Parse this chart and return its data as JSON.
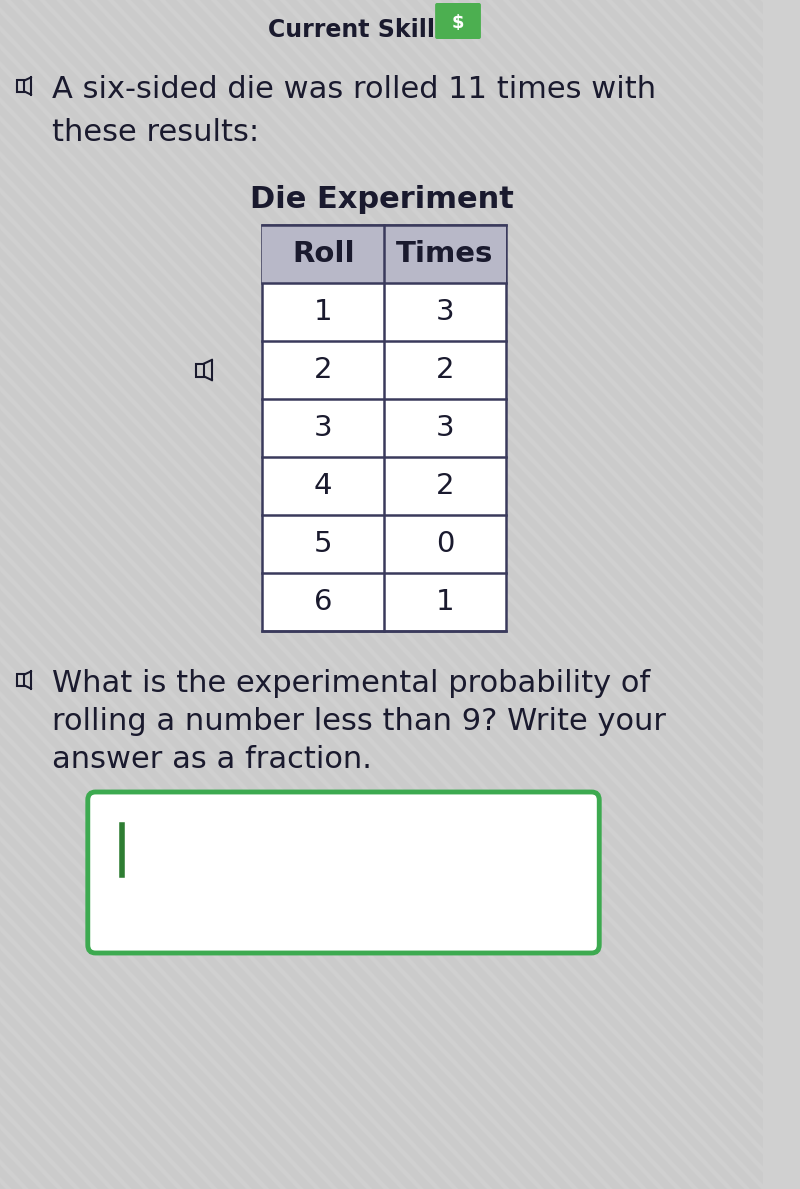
{
  "bg_color": "#d0d0d0",
  "header_text": "Current Skill",
  "header_badge_color": "#4caf50",
  "header_badge_text": "$",
  "intro_text_line1": "A six-sided die was rolled 11 times with",
  "intro_text_line2": "these results:",
  "table_title": "Die Experiment",
  "table_headers": [
    "Roll",
    "Times"
  ],
  "table_data": [
    [
      "1",
      "3"
    ],
    [
      "2",
      "2"
    ],
    [
      "3",
      "3"
    ],
    [
      "4",
      "2"
    ],
    [
      "5",
      "0"
    ],
    [
      "6",
      "1"
    ]
  ],
  "question_line1": "What is the experimental probability of",
  "question_line2": "rolling a number less than 9? Write your",
  "question_line3": "answer as a fraction.",
  "answer_box_color": "#3daa50",
  "text_color": "#1a1a2e",
  "table_border_color": "#3a3a5c",
  "header_bg_color": "#b8b8b8",
  "stripe_color": "#c8c8c8",
  "font_size_intro": 22,
  "font_size_title": 22,
  "font_size_table_header": 21,
  "font_size_table_data": 21,
  "font_size_question": 22
}
